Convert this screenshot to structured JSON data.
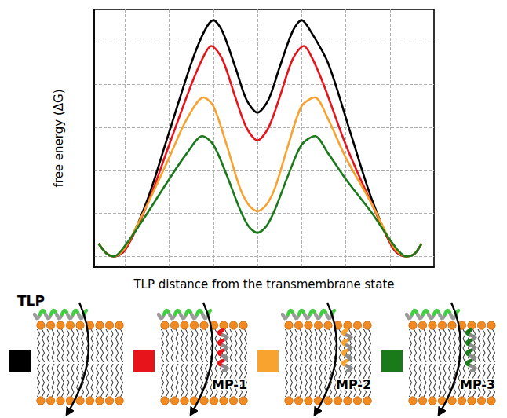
{
  "chart_data": {
    "type": "line",
    "xlabel": "TLP distance from the transmembrane state",
    "ylabel": "free energy (ΔG)",
    "xlim": [
      0.3,
      8
    ],
    "xticks": [
      1,
      2,
      3,
      4,
      5,
      6,
      7
    ],
    "ylim": [
      -0.25,
      5.75
    ],
    "yticks": [
      0,
      1,
      2,
      3,
      4,
      5
    ],
    "grid": true,
    "tick_labels": false,
    "series": [
      {
        "color": "#000000",
        "x": [
          0.4,
          0.6,
          0.75,
          1.0,
          1.5,
          2.0,
          2.5,
          2.8,
          3.0,
          3.2,
          3.5,
          3.75,
          4.0,
          4.25,
          4.5,
          4.8,
          5.0,
          5.2,
          5.6,
          6.1,
          6.6,
          7.1,
          7.37,
          7.55,
          7.72
        ],
        "values": [
          0.3,
          0.05,
          0,
          0.15,
          1.3,
          2.9,
          4.5,
          5.25,
          5.5,
          5.25,
          4.4,
          3.65,
          3.35,
          3.65,
          4.4,
          5.25,
          5.5,
          5.25,
          4.5,
          2.9,
          1.3,
          0.15,
          0,
          0.05,
          0.3
        ]
      },
      {
        "color": "#e8141c",
        "x": [
          0.4,
          0.6,
          0.75,
          1.0,
          1.5,
          2.0,
          2.5,
          2.8,
          2.95,
          3.2,
          3.5,
          3.75,
          4.0,
          4.25,
          4.5,
          4.8,
          5.05,
          5.2,
          5.5,
          6.0,
          6.6,
          7.1,
          7.37,
          7.55,
          7.72
        ],
        "values": [
          0.3,
          0.05,
          0,
          0.15,
          1.2,
          2.6,
          4.0,
          4.7,
          4.9,
          4.6,
          3.7,
          3.0,
          2.7,
          3.0,
          3.7,
          4.6,
          4.9,
          4.7,
          4.0,
          2.6,
          1.2,
          0.15,
          0,
          0.05,
          0.3
        ]
      },
      {
        "color": "#f8a330",
        "x": [
          0.4,
          0.6,
          0.75,
          1.0,
          1.5,
          2.0,
          2.4,
          2.78,
          3.0,
          3.3,
          3.6,
          3.8,
          4.0,
          4.2,
          4.4,
          4.7,
          5.0,
          5.3,
          5.6,
          6.0,
          6.6,
          7.1,
          7.37,
          7.55,
          7.72
        ],
        "values": [
          0.3,
          0.05,
          0,
          0.2,
          1.2,
          2.3,
          3.2,
          3.7,
          3.5,
          2.6,
          1.6,
          1.2,
          1.05,
          1.2,
          1.6,
          2.6,
          3.5,
          3.7,
          3.2,
          2.3,
          1.2,
          0.2,
          0,
          0.05,
          0.3
        ]
      },
      {
        "color": "#1a7a1a",
        "x": [
          0.4,
          0.6,
          0.75,
          1.0,
          1.5,
          2.0,
          2.4,
          2.75,
          3.0,
          3.3,
          3.6,
          3.8,
          4.0,
          4.2,
          4.4,
          4.7,
          5.0,
          5.3,
          5.6,
          6.0,
          6.6,
          7.1,
          7.37,
          7.55,
          7.72
        ],
        "values": [
          0.3,
          0.05,
          0,
          0.25,
          1.0,
          1.8,
          2.4,
          2.8,
          2.6,
          1.9,
          1.1,
          0.7,
          0.55,
          0.7,
          1.1,
          1.9,
          2.6,
          2.8,
          2.4,
          1.8,
          1.0,
          0.25,
          0,
          0.05,
          0.3
        ]
      }
    ]
  },
  "diagram": {
    "panels": [
      {
        "color": "#000000",
        "tlp_label": "TLP"
      },
      {
        "color": "#e8141c",
        "mp_label": "MP-1"
      },
      {
        "color": "#f8a330",
        "mp_label": "MP-2"
      },
      {
        "color": "#1a7a1a",
        "mp_label": "MP-3"
      }
    ]
  }
}
